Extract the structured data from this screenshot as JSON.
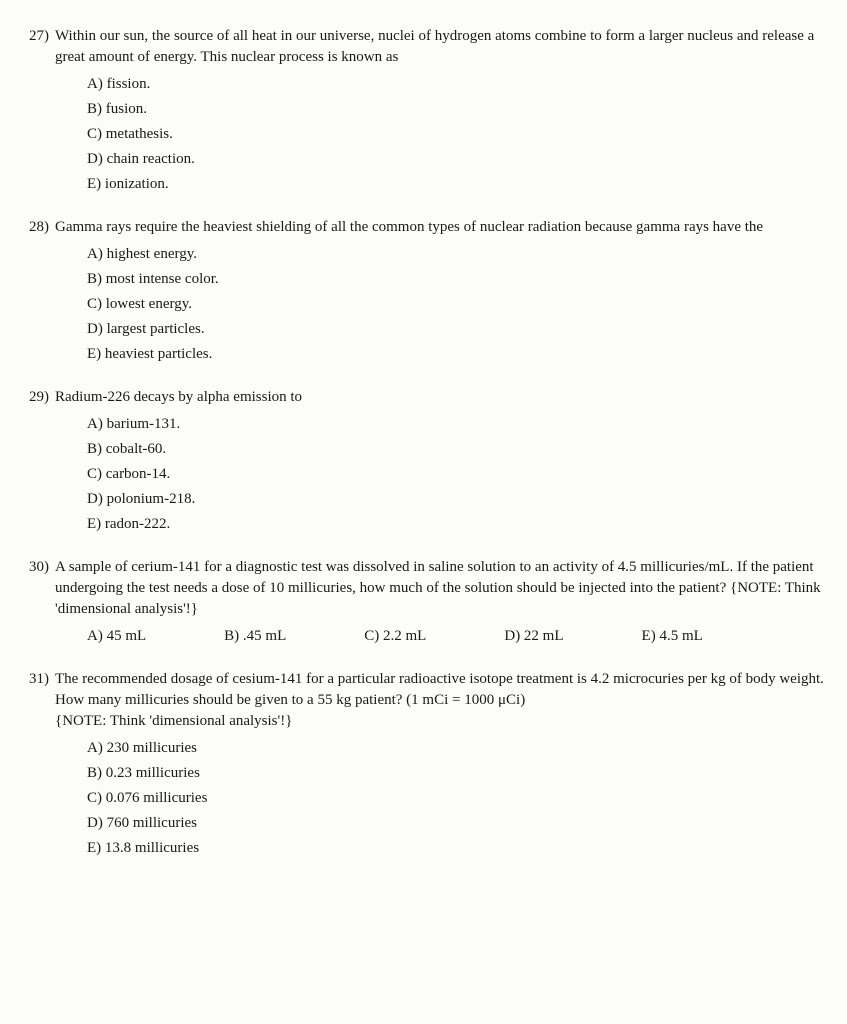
{
  "questions": [
    {
      "number": "27)",
      "stem": "Within our sun, the source of all heat in our universe, nuclei of hydrogen atoms combine to form a larger nucleus and release a great amount of energy.  This nuclear process is known as",
      "layout": "vertical",
      "options": [
        "A) fission.",
        "B) fusion.",
        "C) metathesis.",
        "D) chain reaction.",
        "E) ionization."
      ]
    },
    {
      "number": "28)",
      "stem": "Gamma rays require the heaviest shielding of all the common types of nuclear radiation because gamma rays have the",
      "layout": "vertical",
      "options": [
        "A) highest energy.",
        "B) most intense color.",
        "C) lowest energy.",
        "D) largest particles.",
        "E) heaviest particles."
      ]
    },
    {
      "number": "29)",
      "stem": "Radium-226 decays by alpha emission to",
      "layout": "vertical",
      "options": [
        "A) barium-131.",
        "B) cobalt-60.",
        "C) carbon-14.",
        "D) polonium-218.",
        "E) radon-222."
      ]
    },
    {
      "number": "30)",
      "stem": "A sample of cerium-141 for a diagnostic test was dissolved in saline solution to an activity of 4.5 millicuries/mL. If the patient undergoing the test needs a dose of 10 millicuries, how much of the solution should be injected into the patient? {NOTE: Think 'dimensional analysis'!}",
      "layout": "horizontal",
      "options": [
        "A) 45 mL",
        "B) .45 mL",
        "C) 2.2 mL",
        "D) 22 mL",
        "E) 4.5 mL"
      ]
    },
    {
      "number": "31)",
      "stem": "The recommended dosage of cesium-141 for a particular radioactive isotope  treatment is 4.2 microcuries per kg of body weight. How many millicuries should be given to a 55 kg patient? (1 mCi = 1000 μCi)\n{NOTE: Think 'dimensional analysis'!}",
      "layout": "vertical",
      "options": [
        "A) 230 millicuries",
        "B) 0.23 millicuries",
        "C) 0.076 millicuries",
        "D) 760 millicuries",
        "E) 13.8 millicuries"
      ]
    }
  ]
}
